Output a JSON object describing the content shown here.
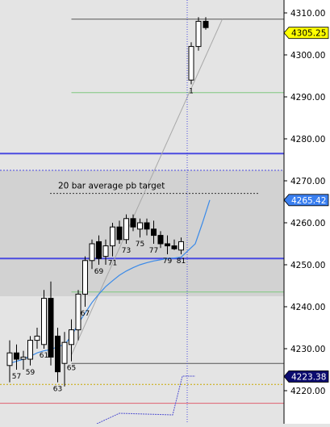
{
  "chart_data": {
    "type": "candlestick",
    "title": "",
    "price_axis": {
      "ticks": [
        "4310.00",
        "4300.00",
        "4290.00",
        "4280.00",
        "4270.00",
        "4260.00",
        "4250.00",
        "4240.00",
        "4230.00",
        "4220.00"
      ],
      "tick_values": [
        4310,
        4300,
        4290,
        4280,
        4270,
        4260,
        4250,
        4240,
        4230,
        4220
      ],
      "range": [
        4214.8,
        4312.0
      ]
    },
    "price_badges": [
      {
        "label": "4305.25",
        "value": 4305.25,
        "color": "#ffff00",
        "text_color": "#000000"
      },
      {
        "label": "4265.42",
        "value": 4265.42,
        "color": "#3a7ff0",
        "text_color": "#ffffff"
      },
      {
        "label": "4223.38",
        "value": 4223.38,
        "color": "#0b0b6e",
        "text_color": "#ffffff"
      }
    ],
    "annotation": {
      "text": "20 bar average  pb target",
      "price": 4267.0
    },
    "bar_labels": [
      {
        "text": "57",
        "bar": 1
      },
      {
        "text": "59",
        "bar": 3
      },
      {
        "text": "61",
        "bar": 5
      },
      {
        "text": "63",
        "bar": 7
      },
      {
        "text": "65",
        "bar": 9
      },
      {
        "text": "67",
        "bar": 11
      },
      {
        "text": "69",
        "bar": 13
      },
      {
        "text": "71",
        "bar": 15
      },
      {
        "text": "73",
        "bar": 17
      },
      {
        "text": "75",
        "bar": 19
      },
      {
        "text": "77",
        "bar": 21
      },
      {
        "text": "79",
        "bar": 23
      },
      {
        "text": "81",
        "bar": 25
      },
      {
        "text": "1",
        "bar": 26
      }
    ],
    "candles": [
      {
        "o": 4226.0,
        "h": 4232.0,
        "l": 4222.0,
        "c": 4229.0
      },
      {
        "o": 4229.0,
        "h": 4231.0,
        "l": 4225.0,
        "c": 4227.5
      },
      {
        "o": 4227.5,
        "h": 4229.5,
        "l": 4225.0,
        "c": 4228.0
      },
      {
        "o": 4227.5,
        "h": 4233.0,
        "l": 4226.0,
        "c": 4232.0
      },
      {
        "o": 4232.0,
        "h": 4235.0,
        "l": 4230.0,
        "c": 4233.0
      },
      {
        "o": 4231.0,
        "h": 4244.0,
        "l": 4230.0,
        "c": 4242.0
      },
      {
        "o": 4242.0,
        "h": 4246.0,
        "l": 4226.0,
        "c": 4228.0
      },
      {
        "o": 4233.0,
        "h": 4235.0,
        "l": 4222.0,
        "c": 4224.5
      },
      {
        "o": 4226.5,
        "h": 4234.0,
        "l": 4221.0,
        "c": 4231.5
      },
      {
        "o": 4231.0,
        "h": 4237.0,
        "l": 4227.0,
        "c": 4234.5
      },
      {
        "o": 4234.5,
        "h": 4244.0,
        "l": 4232.0,
        "c": 4243.0
      },
      {
        "o": 4243.0,
        "h": 4252.0,
        "l": 4240.0,
        "c": 4251.0
      },
      {
        "o": 4251.0,
        "h": 4256.0,
        "l": 4249.0,
        "c": 4255.0
      },
      {
        "o": 4255.5,
        "h": 4257.0,
        "l": 4250.0,
        "c": 4251.5
      },
      {
        "o": 4252.0,
        "h": 4256.0,
        "l": 4250.0,
        "c": 4254.5
      },
      {
        "o": 4254.5,
        "h": 4260.0,
        "l": 4252.0,
        "c": 4259.0
      },
      {
        "o": 4259.0,
        "h": 4260.5,
        "l": 4255.0,
        "c": 4256.0
      },
      {
        "o": 4256.0,
        "h": 4262.0,
        "l": 4255.0,
        "c": 4261.0
      },
      {
        "o": 4261.0,
        "h": 4262.0,
        "l": 4258.0,
        "c": 4259.0
      },
      {
        "o": 4258.5,
        "h": 4261.0,
        "l": 4256.5,
        "c": 4260.0
      },
      {
        "o": 4260.0,
        "h": 4261.0,
        "l": 4257.0,
        "c": 4258.5
      },
      {
        "o": 4258.5,
        "h": 4260.5,
        "l": 4255.0,
        "c": 4257.0
      },
      {
        "o": 4257.0,
        "h": 4258.0,
        "l": 4254.0,
        "c": 4255.0
      },
      {
        "o": 4255.0,
        "h": 4257.0,
        "l": 4252.5,
        "c": 4254.5
      },
      {
        "o": 4254.5,
        "h": 4256.0,
        "l": 4253.5,
        "c": 4253.8
      },
      {
        "o": 4253.5,
        "h": 4256.5,
        "l": 4252.5,
        "c": 4255.5
      },
      {
        "o": 4294.0,
        "h": 4303.0,
        "l": 4293.0,
        "c": 4302.0
      },
      {
        "o": 4302.0,
        "h": 4309.0,
        "l": 4301.0,
        "c": 4308.0
      },
      {
        "o": 4308.0,
        "h": 4309.0,
        "l": 4306.0,
        "c": 4306.5
      }
    ],
    "moving_average": [
      4226.5,
      4227.0,
      4227.5,
      4228.2,
      4229.0,
      4229.5,
      4229.8,
      4230.5,
      4231.0,
      4233.0,
      4236.0,
      4238.5,
      4241.0,
      4243.0,
      4244.8,
      4246.2,
      4247.5,
      4248.5,
      4249.3,
      4250.0,
      4250.5,
      4250.9,
      4251.2,
      4251.5,
      4251.6,
      4251.8,
      4255.0,
      4260.0,
      4265.42
    ],
    "horizontal_lines": [
      {
        "price": 4308.5,
        "color": "#555555",
        "start_bar": 9
      },
      {
        "price": 4291.0,
        "color": "#7ec77e",
        "start_bar": 9
      },
      {
        "price": 4276.5,
        "color": "#4a4ae0",
        "full": true
      },
      {
        "price": 4272.5,
        "color": "#4a4ae0",
        "full": true,
        "dotted": true
      },
      {
        "price": 4251.5,
        "color": "#4a4ae0",
        "full": true
      },
      {
        "price": 4243.5,
        "color": "#7ec77e",
        "start_bar": 9
      },
      {
        "price": 4226.5,
        "color": "#555555",
        "start_bar": 9
      },
      {
        "price": 4221.5,
        "color": "#c8a800",
        "full": true,
        "dotted": true
      },
      {
        "price": 4217.0,
        "color": "#e06070",
        "full": true
      }
    ],
    "shaded_zone": {
      "from": 4242.5,
      "to": 4272.5,
      "color": "#d2d2d2"
    },
    "trend_line": {
      "from_bar": 9,
      "from_price": 4228.5,
      "to_bar": 31,
      "to_price": 4308.5
    },
    "cursor_bar": 26,
    "colors": {
      "background": "#e4e4e4",
      "ma_line": "#3a8ae8",
      "up_candle": "#ffffff",
      "down_candle": "#000000",
      "cursor": "#4a4ae0"
    }
  }
}
